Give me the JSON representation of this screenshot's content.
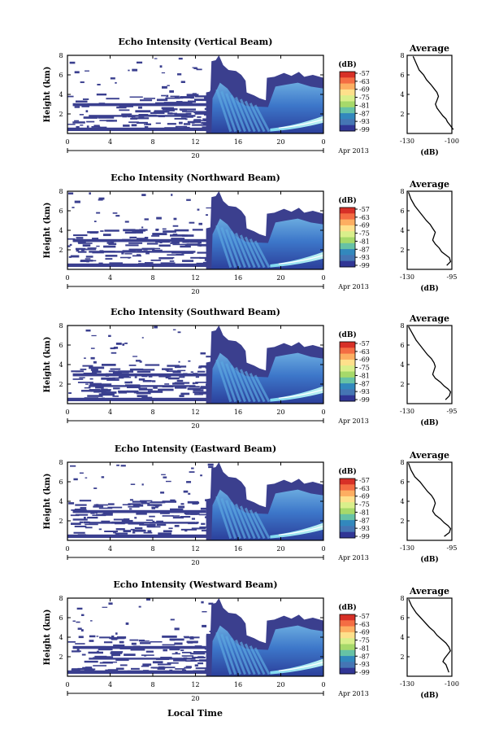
{
  "figure": {
    "x_title": "Local Time",
    "date_label": "Apr 2013",
    "day_label": "20"
  },
  "colorbar": {
    "unit": "(dB)",
    "ticks": [
      "-57",
      "-63",
      "-69",
      "-75",
      "-81",
      "-87",
      "-93",
      "-99"
    ],
    "colors": [
      "#d73027",
      "#f46d43",
      "#fdae61",
      "#fee08b",
      "#d9ef8b",
      "#a6d96a",
      "#66c2a5",
      "#3288bd",
      "#4575b4",
      "#313695"
    ]
  },
  "chart_data": [
    {
      "type": "heatmap",
      "title": "Echo Intensity (Vertical Beam)",
      "ylabel": "Height (km)",
      "x_ticks": [
        "0",
        "4",
        "8",
        "12",
        "16",
        "20",
        "0"
      ],
      "y_ticks": [
        "8",
        "6",
        "4",
        "2"
      ],
      "xlim": [
        0,
        24
      ],
      "ylim": [
        0,
        8
      ],
      "zlim": [
        -99,
        -57
      ],
      "z_unit": "dB",
      "profile": {
        "type": "line",
        "title": "Average",
        "xlabel": "(dB)",
        "xlim": [
          -130,
          -100
        ],
        "x_ticks": [
          "-130",
          "-100"
        ],
        "y_ticks": [
          "8",
          "6",
          "4",
          "2"
        ],
        "ylim": [
          0,
          8
        ],
        "x": [
          -126,
          -124,
          -122,
          -119,
          -117,
          -114,
          -112,
          -110,
          -109,
          -110,
          -111,
          -110,
          -108,
          -106,
          -104,
          -103,
          -101,
          -99
        ],
        "y": [
          7.9,
          7.2,
          6.5,
          6.0,
          5.5,
          5.0,
          4.6,
          4.2,
          3.8,
          3.4,
          3.0,
          2.6,
          2.2,
          1.8,
          1.5,
          1.2,
          0.8,
          0.4
        ]
      }
    },
    {
      "type": "heatmap",
      "title": "Echo Intensity (Northward Beam)",
      "ylabel": "Height (km)",
      "x_ticks": [
        "0",
        "4",
        "8",
        "12",
        "16",
        "20",
        "0"
      ],
      "y_ticks": [
        "8",
        "6",
        "4",
        "2"
      ],
      "xlim": [
        0,
        24
      ],
      "ylim": [
        0,
        8
      ],
      "zlim": [
        -99,
        -57
      ],
      "z_unit": "dB",
      "profile": {
        "type": "line",
        "title": "Average",
        "xlabel": "(dB)",
        "xlim": [
          -130,
          -95
        ],
        "x_ticks": [
          "-130",
          "-95"
        ],
        "y_ticks": [
          "8",
          "6",
          "4",
          "2"
        ],
        "ylim": [
          0,
          8
        ],
        "x": [
          -129,
          -127,
          -124,
          -121,
          -118,
          -115,
          -112,
          -110,
          -108,
          -109,
          -110,
          -108,
          -105,
          -103,
          -100,
          -97,
          -96,
          -99
        ],
        "y": [
          7.9,
          7.2,
          6.5,
          6.0,
          5.5,
          5.0,
          4.6,
          4.2,
          3.8,
          3.4,
          3.0,
          2.6,
          2.2,
          1.8,
          1.5,
          1.2,
          0.8,
          0.4
        ]
      }
    },
    {
      "type": "heatmap",
      "title": "Echo Intensity (Southward Beam)",
      "ylabel": "Height (km)",
      "x_ticks": [
        "0",
        "4",
        "8",
        "12",
        "16",
        "20",
        "0"
      ],
      "y_ticks": [
        "8",
        "6",
        "4",
        "2"
      ],
      "xlim": [
        0,
        24
      ],
      "ylim": [
        0,
        8
      ],
      "zlim": [
        -99,
        -57
      ],
      "z_unit": "dB",
      "profile": {
        "type": "line",
        "title": "Average",
        "xlabel": "(dB)",
        "xlim": [
          -130,
          -95
        ],
        "x_ticks": [
          "-130",
          "-95"
        ],
        "y_ticks": [
          "8",
          "6",
          "4",
          "2"
        ],
        "ylim": [
          0,
          8
        ],
        "x": [
          -129,
          -126,
          -123,
          -120,
          -117,
          -114,
          -111,
          -109,
          -108,
          -109,
          -110,
          -108,
          -104,
          -101,
          -98,
          -96,
          -97,
          -100
        ],
        "y": [
          7.9,
          7.2,
          6.5,
          6.0,
          5.5,
          5.0,
          4.6,
          4.2,
          3.8,
          3.4,
          3.0,
          2.6,
          2.2,
          1.8,
          1.5,
          1.2,
          0.8,
          0.4
        ]
      }
    },
    {
      "type": "heatmap",
      "title": "Echo Intensity (Eastward Beam)",
      "ylabel": "Height (km)",
      "x_ticks": [
        "0",
        "4",
        "8",
        "12",
        "16",
        "20",
        "0"
      ],
      "y_ticks": [
        "8",
        "6",
        "4",
        "2"
      ],
      "xlim": [
        0,
        24
      ],
      "ylim": [
        0,
        8
      ],
      "zlim": [
        -99,
        -57
      ],
      "z_unit": "dB",
      "profile": {
        "type": "line",
        "title": "Average",
        "xlabel": "(dB)",
        "xlim": [
          -130,
          -95
        ],
        "x_ticks": [
          "-130",
          "-95"
        ],
        "y_ticks": [
          "8",
          "6",
          "4",
          "2"
        ],
        "ylim": [
          0,
          8
        ],
        "x": [
          -129,
          -127,
          -124,
          -120,
          -117,
          -114,
          -111,
          -109,
          -108,
          -109,
          -110,
          -108,
          -104,
          -101,
          -98,
          -96,
          -97,
          -101
        ],
        "y": [
          7.9,
          7.2,
          6.5,
          6.0,
          5.5,
          5.0,
          4.6,
          4.2,
          3.8,
          3.4,
          3.0,
          2.6,
          2.2,
          1.8,
          1.5,
          1.2,
          0.8,
          0.4
        ]
      }
    },
    {
      "type": "heatmap",
      "title": "Echo Intensity (Westward Beam)",
      "ylabel": "Height (km)",
      "x_ticks": [
        "0",
        "4",
        "8",
        "12",
        "16",
        "20",
        "0"
      ],
      "y_ticks": [
        "8",
        "6",
        "4",
        "2"
      ],
      "xlim": [
        0,
        24
      ],
      "ylim": [
        0,
        8
      ],
      "zlim": [
        -99,
        -57
      ],
      "z_unit": "dB",
      "profile": {
        "type": "line",
        "title": "Average",
        "xlabel": "(dB)",
        "xlim": [
          -130,
          -100
        ],
        "x_ticks": [
          "-130",
          "-100"
        ],
        "y_ticks": [
          "8",
          "6",
          "4",
          "2"
        ],
        "ylim": [
          0,
          8
        ],
        "x": [
          -129,
          -127,
          -124,
          -121,
          -118,
          -115,
          -112,
          -110,
          -107,
          -104,
          -102,
          -101,
          -103,
          -105,
          -106,
          -104,
          -103,
          -102
        ],
        "y": [
          7.9,
          7.2,
          6.5,
          6.0,
          5.5,
          5.0,
          4.6,
          4.2,
          3.8,
          3.4,
          3.0,
          2.6,
          2.2,
          1.8,
          1.5,
          1.2,
          0.8,
          0.4
        ]
      }
    }
  ]
}
